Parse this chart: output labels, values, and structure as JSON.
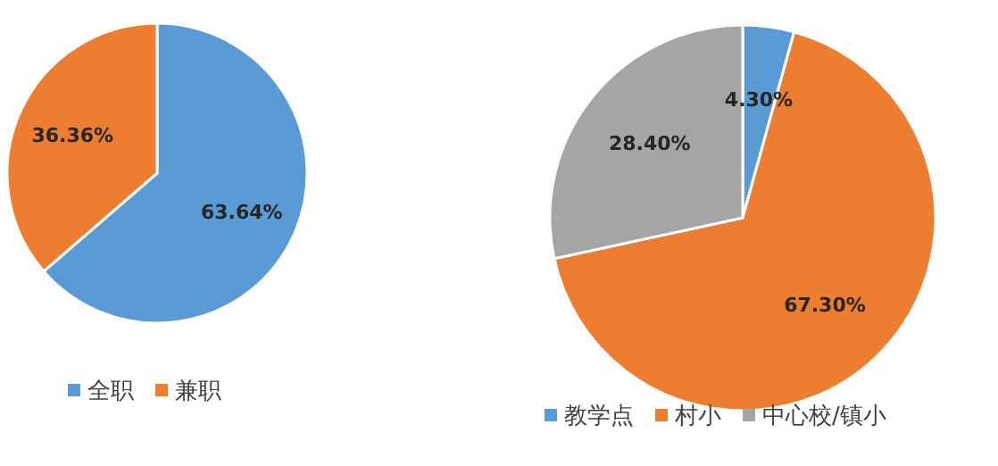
{
  "chart_data": [
    {
      "type": "pie",
      "categories": [
        "全职",
        "兼职"
      ],
      "values": [
        63.64,
        36.36
      ],
      "colors": [
        "#5b9bd5",
        "#ed7d31"
      ],
      "value_labels": [
        "63.64%",
        "36.36%"
      ],
      "legend": "bottom"
    },
    {
      "type": "pie",
      "categories": [
        "教学点",
        "村小",
        "中心校/镇小"
      ],
      "values": [
        4.3,
        67.3,
        28.4
      ],
      "colors": [
        "#5b9bd5",
        "#ed7d31",
        "#a5a5a5"
      ],
      "value_labels": [
        "4.30%",
        "67.30%",
        "28.40%"
      ],
      "legend": "bottom"
    }
  ]
}
